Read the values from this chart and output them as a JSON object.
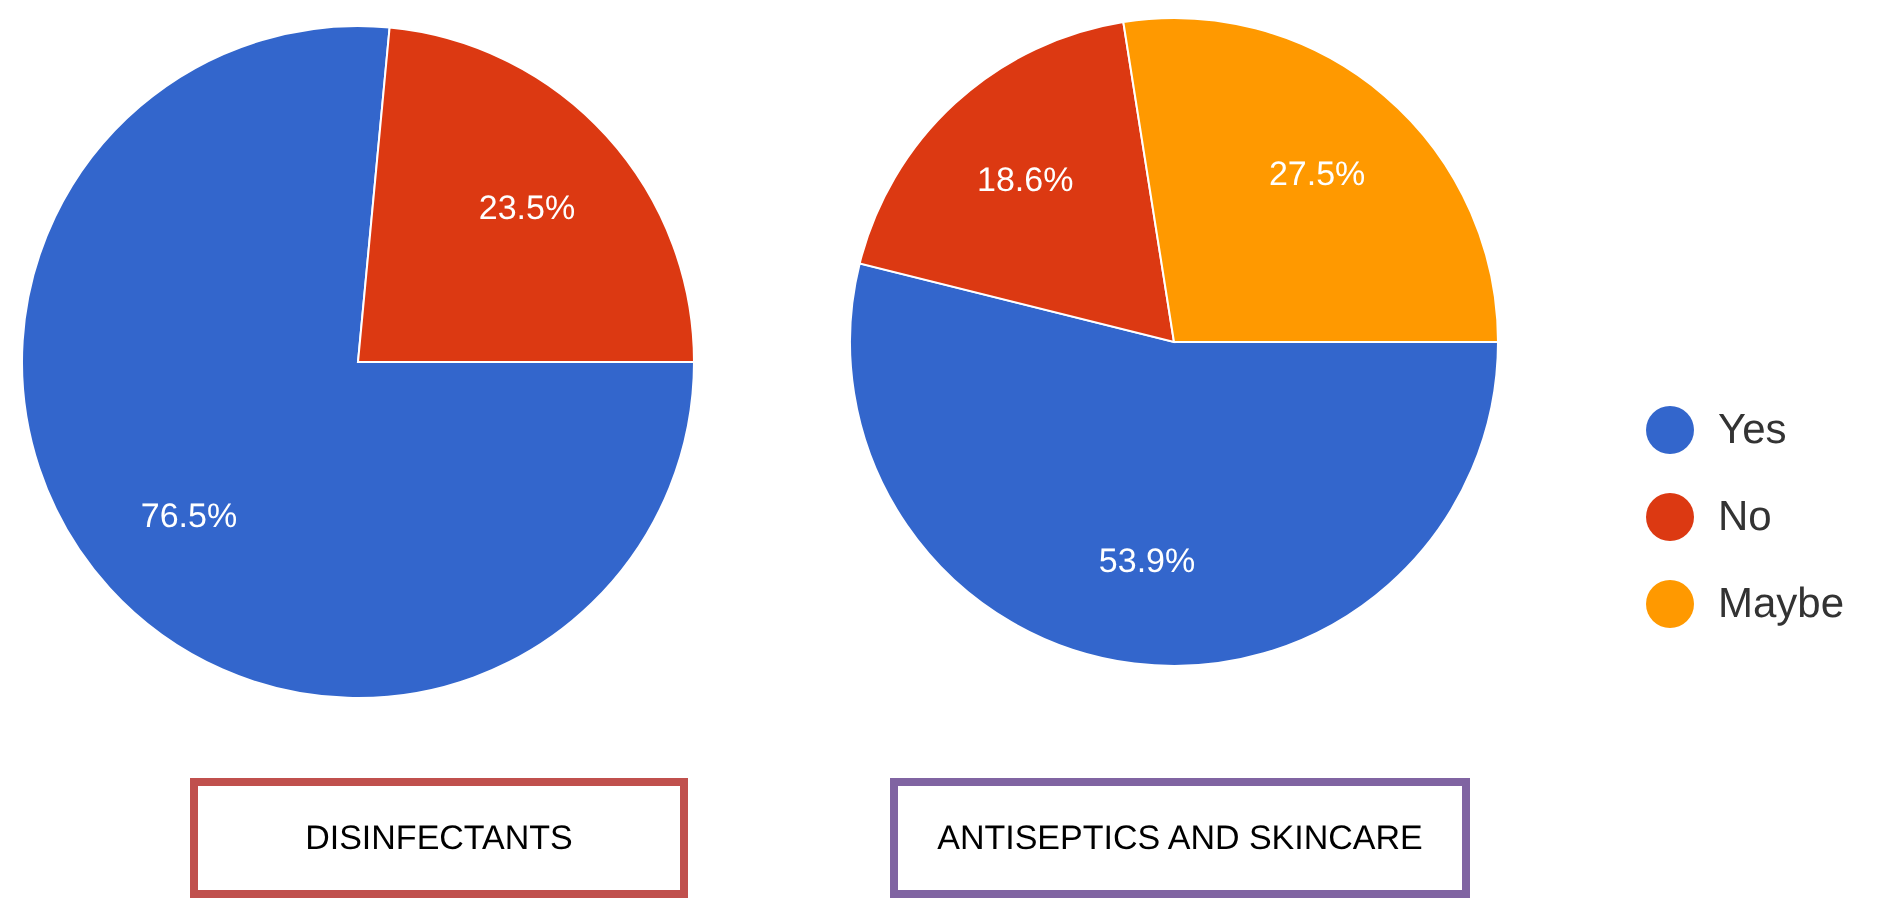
{
  "chart_data": [
    {
      "type": "pie",
      "title": "DISINFECTANTS",
      "categories": [
        null,
        null
      ],
      "values": [
        76.5,
        23.5
      ],
      "value_labels": [
        "76.5%",
        "23.5%"
      ],
      "colors": [
        "#3366cc",
        "#dc3912"
      ]
    },
    {
      "type": "pie",
      "title": "ANTISEPTICS AND SKINCARE",
      "categories": [
        "Yes",
        "No",
        "Maybe"
      ],
      "values": [
        53.9,
        18.6,
        27.5
      ],
      "value_labels": [
        "53.9%",
        "18.6%",
        "27.5%"
      ],
      "colors": [
        "#3366cc",
        "#dc3912",
        "#ff9900"
      ],
      "legend": "right"
    }
  ]
}
